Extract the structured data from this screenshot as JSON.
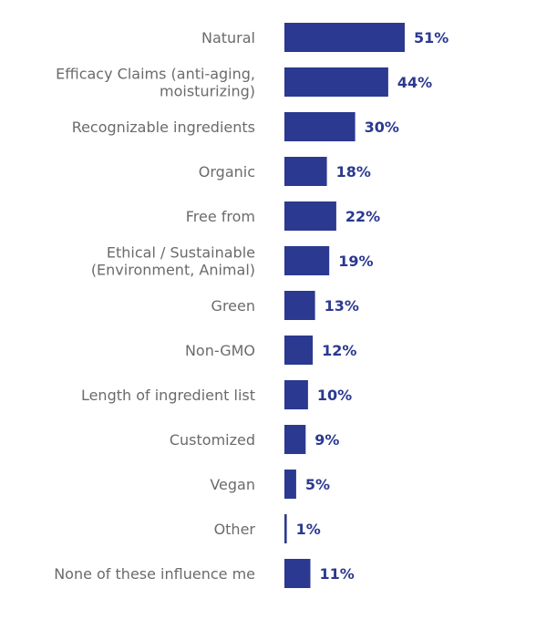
{
  "chart_data": {
    "type": "bar",
    "orientation": "horizontal",
    "title": "",
    "xlabel": "",
    "ylabel": "",
    "xlim": [
      0,
      51
    ],
    "grid": false,
    "legend": "none",
    "bar_color": "#2b3990",
    "label_color": "#6b6b6b",
    "value_color": "#2b3990",
    "categories": [
      [
        "Natural"
      ],
      [
        "Efficacy Claims (anti-aging,",
        "moisturizing)"
      ],
      [
        "Recognizable ingredients"
      ],
      [
        "Organic"
      ],
      [
        "Free from"
      ],
      [
        "Ethical / Sustainable",
        "(Environment, Animal)"
      ],
      [
        "Green"
      ],
      [
        "Non-GMO"
      ],
      [
        "Length of ingredient list"
      ],
      [
        "Customized"
      ],
      [
        "Vegan"
      ],
      [
        "Other"
      ],
      [
        "None of these influence me"
      ]
    ],
    "values": [
      51,
      44,
      30,
      18,
      22,
      19,
      13,
      12,
      10,
      9,
      5,
      1,
      11
    ],
    "value_labels": [
      "51%",
      "44%",
      "30%",
      "18%",
      "22%",
      "19%",
      "13%",
      "12%",
      "10%",
      "9%",
      "5%",
      "1%",
      "11%"
    ]
  }
}
